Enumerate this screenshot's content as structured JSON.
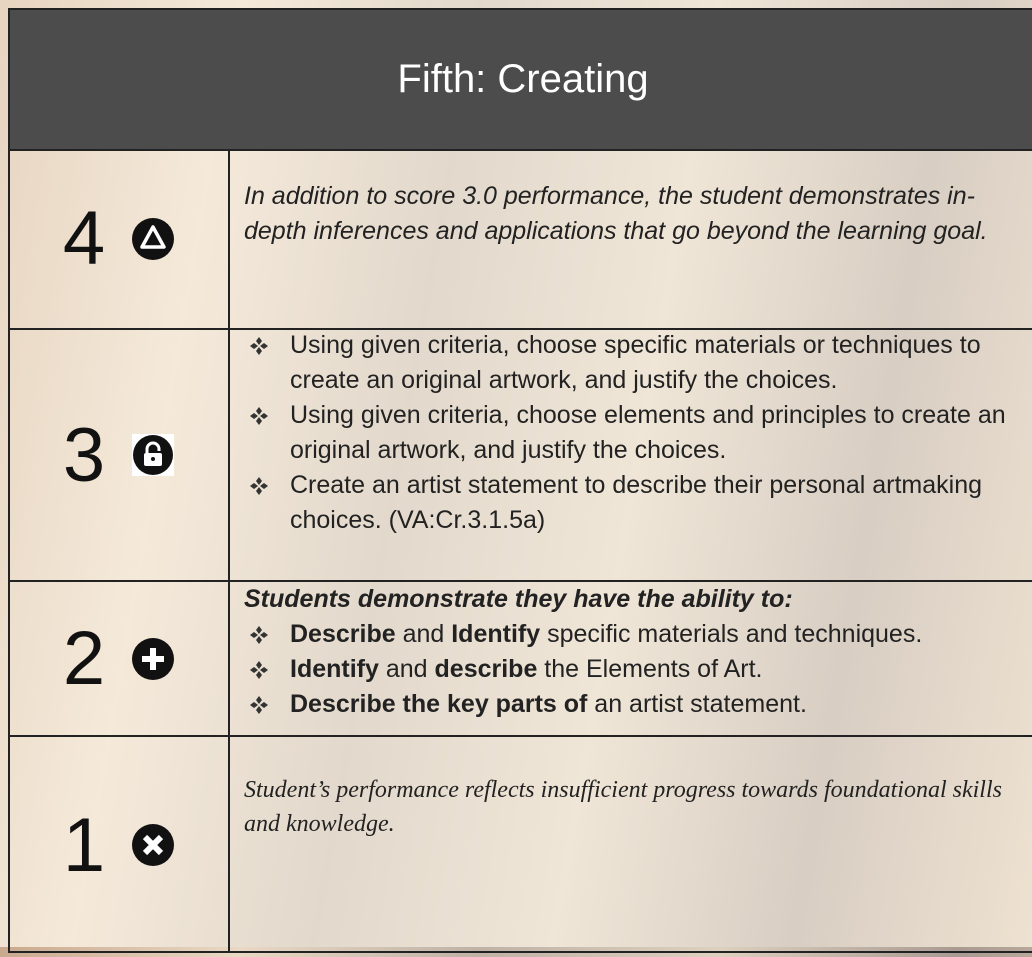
{
  "header": {
    "title": "Fifth: Creating"
  },
  "rows": [
    {
      "score": "4",
      "text": "In addition to score 3.0 performance, the student demonstrates in-depth inferences and applications that go beyond the learning goal."
    },
    {
      "score": "3",
      "bullets": [
        "Using given criteria, choose specific materials or techniques to create an original artwork, and justify the choices.",
        "Using given criteria, choose elements and principles to create an original artwork, and justify the choices.",
        "Create an artist statement to describe their personal artmaking choices. (VA:Cr.3.1.5a)"
      ]
    },
    {
      "score": "2",
      "intro": "Students demonstrate they have the ability to:",
      "bullets": [
        [
          {
            "text": "Describe",
            "bold": true
          },
          {
            "text": " and ",
            "bold": false
          },
          {
            "text": "Identify",
            "bold": true
          },
          {
            "text": " specific materials and techniques.",
            "bold": false
          }
        ],
        [
          {
            "text": "Identify",
            "bold": true
          },
          {
            "text": " and ",
            "bold": false
          },
          {
            "text": "describe",
            "bold": true
          },
          {
            "text": " the Elements of Art.",
            "bold": false
          }
        ],
        [
          {
            "text": "Describe the key parts of",
            "bold": true
          },
          {
            "text": " an artist statement.",
            "bold": false
          }
        ]
      ]
    },
    {
      "score": "1",
      "text": "Student’s performance reflects insufficient progress towards foundational skills and knowledge."
    }
  ]
}
